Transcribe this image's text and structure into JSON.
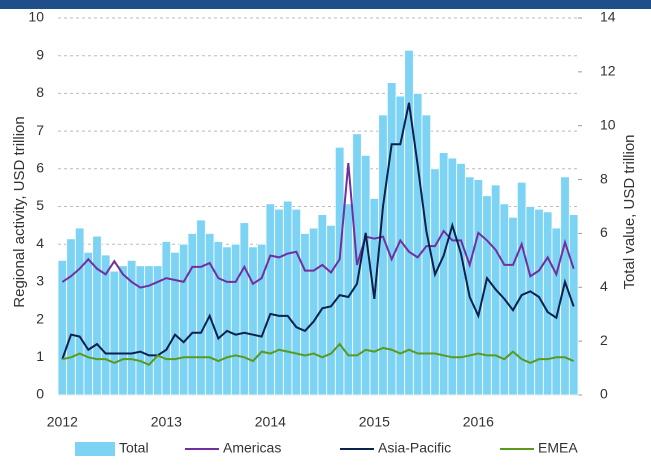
{
  "chart_data": {
    "type": "combo",
    "categories": [
      "2012",
      null,
      null,
      null,
      null,
      null,
      null,
      null,
      null,
      null,
      null,
      null,
      "2013",
      null,
      null,
      null,
      null,
      null,
      null,
      null,
      null,
      null,
      null,
      null,
      "2014",
      null,
      null,
      null,
      null,
      null,
      null,
      null,
      null,
      null,
      null,
      null,
      "2015",
      null,
      null,
      null,
      null,
      null,
      null,
      null,
      null,
      null,
      null,
      null,
      "2016",
      null,
      null,
      null,
      null,
      null,
      null,
      null,
      null,
      null,
      null,
      null
    ],
    "ylabel": "Regional activity, USD trillion",
    "y2label": "Total value, USD trillion",
    "ylim": [
      0,
      10
    ],
    "yticks": [
      0,
      1,
      2,
      3,
      4,
      5,
      6,
      7,
      8,
      9,
      10
    ],
    "y2lim": [
      0,
      14
    ],
    "y2ticks": [
      0,
      2,
      4,
      6,
      8,
      10,
      12,
      14
    ],
    "grid": true,
    "legend": "bottom",
    "series": [
      {
        "name": "Total",
        "type": "bar",
        "axis": "y2",
        "color": "#7dd3f3",
        "values": [
          5.0,
          5.8,
          6.2,
          5.3,
          5.9,
          5.2,
          4.6,
          4.8,
          5.0,
          4.8,
          4.8,
          4.8,
          5.7,
          5.3,
          5.6,
          6.0,
          6.5,
          6.0,
          5.7,
          5.5,
          5.6,
          6.4,
          5.5,
          5.6,
          7.1,
          6.9,
          7.2,
          6.9,
          6.0,
          6.2,
          6.7,
          6.3,
          9.2,
          7.1,
          9.7,
          8.9,
          7.3,
          10.4,
          11.6,
          11.1,
          12.8,
          11.2,
          10.4,
          8.4,
          9.0,
          8.8,
          8.6,
          8.1,
          8.0,
          7.4,
          7.8,
          7.1,
          6.6,
          7.9,
          7.0,
          6.9,
          6.8,
          6.2,
          8.1,
          6.7
        ]
      },
      {
        "name": "Americas",
        "type": "line",
        "color": "#7030a0",
        "values": [
          3.0,
          3.15,
          3.35,
          3.6,
          3.35,
          3.2,
          3.55,
          3.2,
          3.0,
          2.85,
          2.9,
          3.0,
          3.1,
          3.05,
          3.0,
          3.4,
          3.4,
          3.5,
          3.1,
          3.0,
          3.0,
          3.4,
          2.95,
          3.1,
          3.7,
          3.65,
          3.75,
          3.8,
          3.3,
          3.3,
          3.45,
          3.25,
          3.6,
          6.15,
          3.45,
          4.2,
          4.15,
          4.2,
          3.6,
          4.1,
          3.8,
          3.65,
          3.95,
          3.95,
          4.35,
          4.1,
          4.1,
          3.45,
          4.3,
          4.1,
          3.85,
          3.45,
          3.45,
          4.0,
          3.15,
          3.3,
          3.65,
          3.2,
          4.05,
          3.35
        ]
      },
      {
        "name": "Asia-Pacific",
        "type": "line",
        "color": "#0b2150",
        "values": [
          0.95,
          1.6,
          1.55,
          1.2,
          1.35,
          1.1,
          1.1,
          1.1,
          1.1,
          1.15,
          1.05,
          1.05,
          1.2,
          1.6,
          1.4,
          1.65,
          1.65,
          2.1,
          1.5,
          1.7,
          1.6,
          1.65,
          1.6,
          1.55,
          2.15,
          2.1,
          2.1,
          1.8,
          1.7,
          1.95,
          2.3,
          2.35,
          2.65,
          2.6,
          2.95,
          4.3,
          2.55,
          5.0,
          6.65,
          6.65,
          7.75,
          6.1,
          4.35,
          3.2,
          3.7,
          4.5,
          3.75,
          2.6,
          2.1,
          3.1,
          2.8,
          2.55,
          2.25,
          2.65,
          2.75,
          2.6,
          2.2,
          2.05,
          3.0,
          2.35
        ]
      },
      {
        "name": "EMEA",
        "type": "line",
        "color": "#5a9a1e",
        "values": [
          0.95,
          1.0,
          1.1,
          1.0,
          0.95,
          0.95,
          0.85,
          0.95,
          0.95,
          0.9,
          0.8,
          1.05,
          0.95,
          0.95,
          1.0,
          1.0,
          1.0,
          1.0,
          0.9,
          1.0,
          1.05,
          1.0,
          0.9,
          1.15,
          1.1,
          1.2,
          1.15,
          1.1,
          1.05,
          1.1,
          1.0,
          1.1,
          1.35,
          1.05,
          1.05,
          1.2,
          1.15,
          1.25,
          1.2,
          1.1,
          1.2,
          1.1,
          1.1,
          1.1,
          1.05,
          1.0,
          1.0,
          1.05,
          1.1,
          1.05,
          1.05,
          0.95,
          1.15,
          0.95,
          0.85,
          0.95,
          0.95,
          1.0,
          1.0,
          0.9
        ]
      }
    ]
  }
}
